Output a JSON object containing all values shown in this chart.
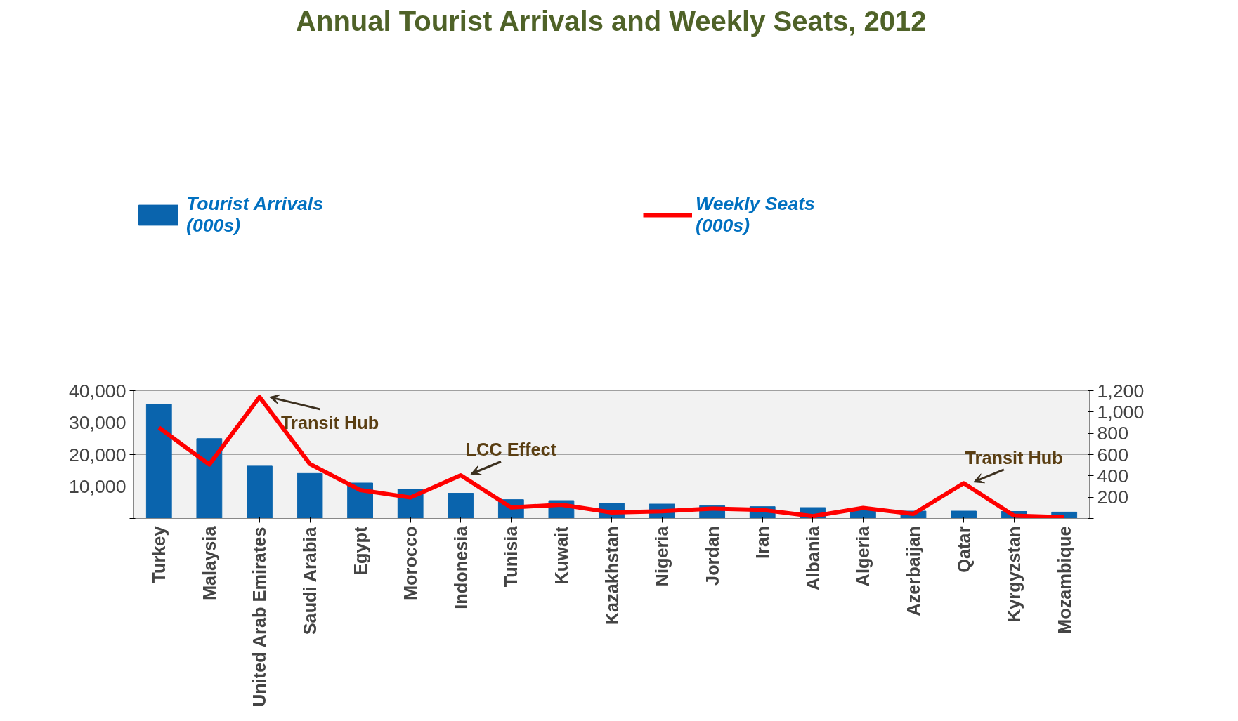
{
  "chart_data": {
    "type": "bar",
    "title": "Annual Tourist Arrivals and Weekly Seats, 2012",
    "categories": [
      "Turkey",
      "Malaysia",
      "United Arab Emirates",
      "Saudi Arabia",
      "Egypt",
      "Morocco",
      "Indonesia",
      "Tunisia",
      "Kuwait",
      "Kazakhstan",
      "Nigeria",
      "Jordan",
      "Iran",
      "Albania",
      "Algeria",
      "Azerbaijan",
      "Qatar",
      "Kyrgyzstan",
      "Mozambique"
    ],
    "series": [
      {
        "name": "Tourist Arrivals\n(000s)",
        "color": "#0a64ad",
        "values": [
          35700,
          25000,
          16400,
          14100,
          11100,
          9200,
          7900,
          5900,
          5600,
          4700,
          4500,
          4000,
          3700,
          3400,
          2600,
          2300,
          2300,
          2200,
          2000
        ]
      },
      {
        "name": "Weekly Seats\n(000s)",
        "type": "line",
        "axis": "y2",
        "color": "#ff0000",
        "values": [
          853,
          507,
          1141,
          512,
          267,
          197,
          405,
          104,
          128,
          56,
          67,
          93,
          80,
          21,
          99,
          43,
          331,
          27,
          11
        ]
      }
    ],
    "ylim": [
      0,
      40000
    ],
    "yticks": [
      {
        "value": 0,
        "label": null
      },
      {
        "value": 10000,
        "label": "10,000"
      },
      {
        "value": 20000,
        "label": "20,000"
      },
      {
        "value": 30000,
        "label": "30,000"
      },
      {
        "value": 40000,
        "label": "40,000"
      }
    ],
    "y2lim": [
      0,
      1200
    ],
    "y2ticks": [
      {
        "value": 0,
        "label": null
      },
      200,
      400,
      600,
      800,
      {
        "value": 1000,
        "label": "1,000"
      },
      {
        "value": 1200,
        "label": "1,200"
      }
    ],
    "annotations": [
      {
        "text": "Transit Hub",
        "x": "United Arab Emirates",
        "y": 38000
      },
      {
        "text": "LCC Effect",
        "x": "Indonesia",
        "y": 13500
      },
      {
        "text": "Transit Hub",
        "x": "Qatar",
        "y": 11000
      }
    ],
    "grid": "y",
    "legend": "top",
    "marker": "none",
    "line_style": "solid"
  }
}
